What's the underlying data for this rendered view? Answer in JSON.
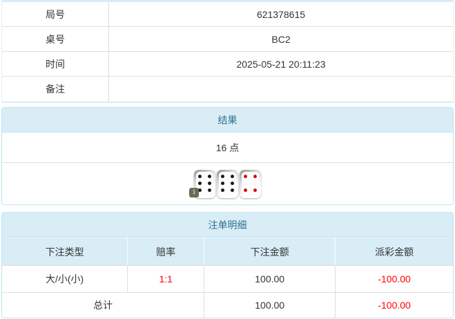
{
  "info": {
    "rows": [
      {
        "label": "局号",
        "value": "621378615"
      },
      {
        "label": "桌号",
        "value": "BC2"
      },
      {
        "label": "时间",
        "value": "2025-05-21 20:11:23"
      },
      {
        "label": "备注",
        "value": ""
      }
    ]
  },
  "result": {
    "heading": "结果",
    "points": "16 点",
    "dice": [
      {
        "value": 6,
        "color": "black"
      },
      {
        "value": 6,
        "color": "black"
      },
      {
        "value": 4,
        "color": "red"
      }
    ],
    "info_badge": "i"
  },
  "bets": {
    "heading": "注单明细",
    "columns": [
      "下注类型",
      "赔率",
      "下注金额",
      "派彩金额"
    ],
    "rows": [
      {
        "type": "大/小(小)",
        "odds": "1:1",
        "amount": "100.00",
        "payout": "-100.00"
      }
    ],
    "total": {
      "label": "总计",
      "amount": "100.00",
      "payout": "-100.00"
    }
  },
  "colors": {
    "accent_text": "#31708f",
    "heading_bg": "#d9edf7",
    "panel_border": "#bce8f1",
    "negative_text": "#ff0000",
    "pip_black": "#1a1a1a",
    "pip_red": "#cc1111"
  }
}
